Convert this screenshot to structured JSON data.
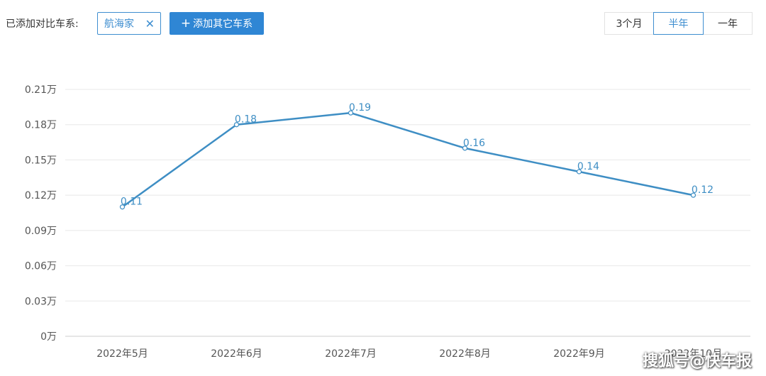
{
  "toolbar": {
    "added_label": "已添加对比车系:",
    "chip_label": "航海家",
    "chip_close": "✕",
    "add_button_plus": "+",
    "add_button_label": "添加其它车系",
    "ranges": [
      {
        "label": "3个月",
        "active": false
      },
      {
        "label": "半年",
        "active": true
      },
      {
        "label": "一年",
        "active": false
      }
    ]
  },
  "chart_data": {
    "type": "line",
    "title": "",
    "xlabel": "",
    "ylabel": "",
    "categories": [
      "2022年5月",
      "2022年6月",
      "2022年7月",
      "2022年8月",
      "2022年9月",
      "2022年10月"
    ],
    "series": [
      {
        "values": [
          0.11,
          0.18,
          0.19,
          0.16,
          0.14,
          0.12
        ],
        "labels": [
          "0.11",
          "0.18",
          "0.19",
          "0.16",
          "0.14",
          "0.12"
        ],
        "color": "#3e8ec4"
      }
    ],
    "yticks": [
      0,
      0.03,
      0.06,
      0.09,
      0.12,
      0.15,
      0.18,
      0.21
    ],
    "ytick_labels": [
      "0万",
      "0.03万",
      "0.06万",
      "0.09万",
      "0.12万",
      "0.15万",
      "0.18万",
      "0.21万"
    ],
    "ylim": [
      0,
      0.21
    ],
    "grid": true,
    "legend": "none",
    "grid_color": "#e8e8e8",
    "axis_color": "#cccccc"
  },
  "watermark": "搜狐号@快车报"
}
